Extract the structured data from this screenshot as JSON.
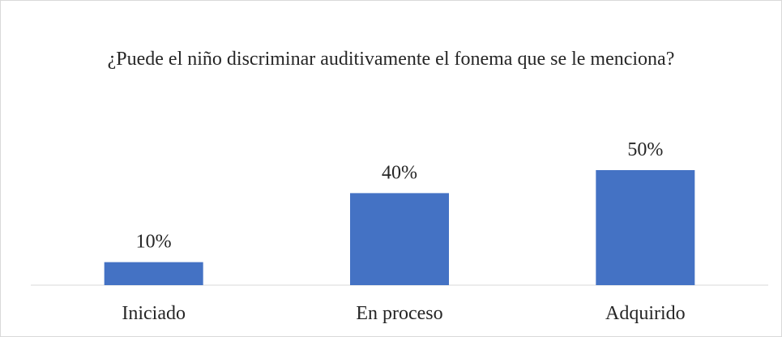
{
  "chart_data": {
    "type": "bar",
    "title": "¿Puede el niño discriminar auditivamente el fonema que se le menciona?",
    "categories": [
      "Iniciado",
      "En proceso",
      "Adquirido"
    ],
    "values": [
      10,
      40,
      50
    ],
    "value_labels": [
      "10%",
      "40%",
      "50%"
    ],
    "color": "#4472c4"
  }
}
